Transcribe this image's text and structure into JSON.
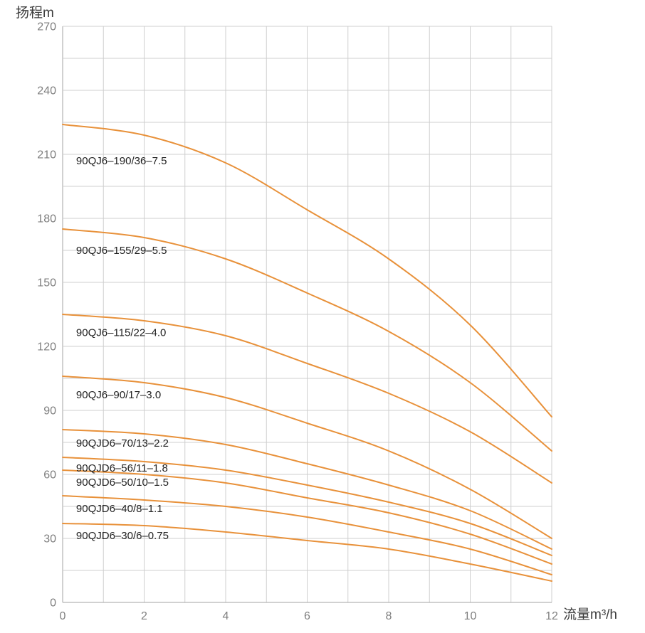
{
  "page": {
    "background": "#ffffff"
  },
  "chart_data": {
    "type": "line",
    "title": "",
    "ylabel": "扬程m",
    "xlabel": "流量m³/h",
    "xlim": [
      0,
      12
    ],
    "ylim": [
      0,
      270
    ],
    "x_tick_labels": [
      "0",
      "2",
      "4",
      "6",
      "8",
      "10",
      "12"
    ],
    "y_tick_labels": [
      "0",
      "30",
      "60",
      "90",
      "120",
      "150",
      "180",
      "210",
      "240",
      "270"
    ],
    "grid": {
      "visible": true,
      "x_step": 1,
      "y_step": 15
    },
    "legend_position": "inline-curve-labels",
    "x": [
      0,
      2,
      4,
      6,
      8,
      10,
      12
    ],
    "series": [
      {
        "name": "90QJ6–190/36–7.5",
        "values": [
          224,
          219,
          206,
          184,
          161,
          130,
          87
        ],
        "label_x": 0.33,
        "label_y": 207.0
      },
      {
        "name": "90QJ6–155/29–5.5",
        "values": [
          175,
          171,
          161,
          145,
          127,
          103,
          71
        ],
        "label_x": 0.33,
        "label_y": 165.0
      },
      {
        "name": "90QJ6–115/22–4.0",
        "values": [
          135,
          132,
          125,
          112,
          98,
          80,
          56
        ],
        "label_x": 0.33,
        "label_y": 126.5
      },
      {
        "name": "90QJ6–90/17–3.0",
        "values": [
          106,
          103,
          96,
          84,
          71,
          53,
          30
        ],
        "label_x": 0.33,
        "label_y": 97.3
      },
      {
        "name": "90QJD6–70/13–2.2",
        "values": [
          81,
          79,
          74,
          65,
          55,
          43,
          25
        ],
        "label_x": 0.33,
        "label_y": 74.7
      },
      {
        "name": "90QJD6–56/11–1.8",
        "values": [
          68,
          66,
          62,
          55,
          47,
          37,
          22
        ],
        "label_x": 0.33,
        "label_y": 63.0
      },
      {
        "name": "90QJD6–50/10–1.5",
        "values": [
          62,
          60,
          56,
          49,
          42,
          32,
          18
        ],
        "label_x": 0.33,
        "label_y": 56.3
      },
      {
        "name": "90QJD6–40/8–1.1",
        "values": [
          50,
          48,
          45,
          40,
          33,
          25,
          13
        ],
        "label_x": 0.33,
        "label_y": 44.0
      },
      {
        "name": "90QJD6–30/6–0.75",
        "values": [
          37,
          36,
          33,
          29,
          25,
          18,
          10
        ],
        "label_x": 0.33,
        "label_y": 31.3
      }
    ],
    "colors": {
      "curve": "#E8913A",
      "grid": "#cfcfcf",
      "axis": "#a3a3a3",
      "tick_text": "#7f7f7f",
      "axis_title_text": "#3c3c3c",
      "curve_label_text": "#222222"
    }
  }
}
